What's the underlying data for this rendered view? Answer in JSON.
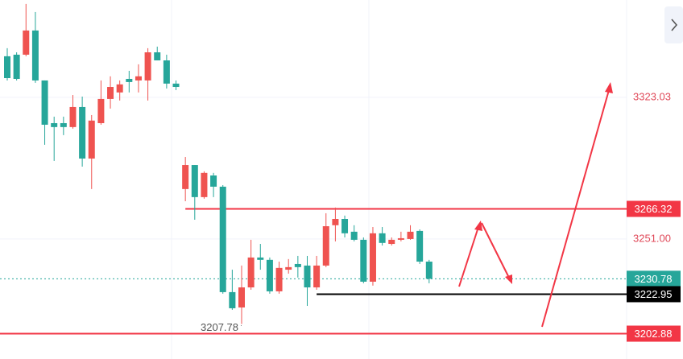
{
  "chart_data": {
    "type": "candlestick",
    "up_color": "#ef5350",
    "down_color": "#26a69a",
    "ylim": [
      3190,
      3372.5
    ],
    "yticks": [
      3323.03,
      {
        "value": 3251,
        "label": "3251.00"
      }
    ],
    "tick_color": "#e04a5a",
    "grid": true,
    "open": [
      3343.9,
      3344.7,
      3344.7,
      3357.0,
      3331.6,
      3309.9,
      3309.9,
      3307.9,
      3318.1,
      3291.9,
      3309.9,
      3322.2,
      3325.5,
      3332.4,
      3331.6,
      3331.6,
      3345.9,
      3341.8,
      3330.0,
      3276.4,
      3288.6,
      3272.3,
      3283.3,
      3277.6,
      3224.0,
      3216.2,
      3226.4,
      3241.6,
      3240.4,
      3224.4,
      3235.4,
      3238.3,
      3237.5,
      3226.4,
      3237.5,
      3258.0,
      3261.2,
      3254.7,
      3250.6,
      3229.3,
      3253.9,
      3248.5,
      3250.6,
      3251.0,
      3255.1,
      3239.5
    ],
    "high": [
      3348.0,
      3345.9,
      3370.5,
      3366.4,
      3331.6,
      3313.2,
      3313.2,
      3324.2,
      3323.4,
      3314.0,
      3331.6,
      3333.7,
      3331.6,
      3336.5,
      3339.8,
      3348.0,
      3348.8,
      3344.7,
      3331.6,
      3292.7,
      3288.6,
      3285.4,
      3284.6,
      3278.4,
      3235.4,
      3237.5,
      3250.6,
      3248.5,
      3241.6,
      3239.5,
      3240.8,
      3242.4,
      3242.4,
      3242.4,
      3264.1,
      3267.0,
      3262.9,
      3258.0,
      3251.8,
      3257.1,
      3257.1,
      3251.8,
      3254.7,
      3258.0,
      3255.9,
      3240.4
    ],
    "low": [
      3331.6,
      3331.6,
      3343.9,
      3330.4,
      3298.9,
      3290.7,
      3303.8,
      3307.1,
      3287.8,
      3276.4,
      3309.1,
      3317.3,
      3321.4,
      3325.5,
      3325.5,
      3321.4,
      3341.8,
      3327.5,
      3326.7,
      3270.2,
      3260.8,
      3271.5,
      3272.3,
      3223.2,
      3215.0,
      3207.78,
      3225.2,
      3235.4,
      3223.2,
      3223.2,
      3233.4,
      3231.4,
      3217.0,
      3225.2,
      3236.7,
      3249.8,
      3251.8,
      3249.8,
      3228.5,
      3227.3,
      3247.7,
      3247.7,
      3249.8,
      3250.6,
      3238.3,
      3228.5
    ],
    "close": [
      3332.8,
      3332.4,
      3357.0,
      3331.6,
      3309.1,
      3307.9,
      3307.9,
      3318.1,
      3291.9,
      3311.2,
      3322.2,
      3328.3,
      3329.6,
      3330.8,
      3333.7,
      3345.9,
      3341.8,
      3330.0,
      3328.3,
      3288.6,
      3272.3,
      3284.6,
      3277.6,
      3224.0,
      3215.8,
      3226.4,
      3241.6,
      3240.4,
      3224.4,
      3236.3,
      3236.7,
      3236.7,
      3226.4,
      3237.5,
      3257.5,
      3261.2,
      3253.9,
      3250.6,
      3229.3,
      3253.9,
      3249.0,
      3250.6,
      3251.4,
      3254.7,
      3239.5,
      3230.78
    ],
    "low_annotation_index": 25,
    "levels": [
      {
        "value": 3266.32,
        "color": "#f23645",
        "from_index": 19
      },
      {
        "value": 3230.78,
        "color": "#26a69a",
        "dotted": true
      },
      {
        "value": 3222.95,
        "color": "#000000",
        "from_index": 33
      },
      {
        "value": 3202.88,
        "color": "#f23645"
      }
    ]
  }
}
